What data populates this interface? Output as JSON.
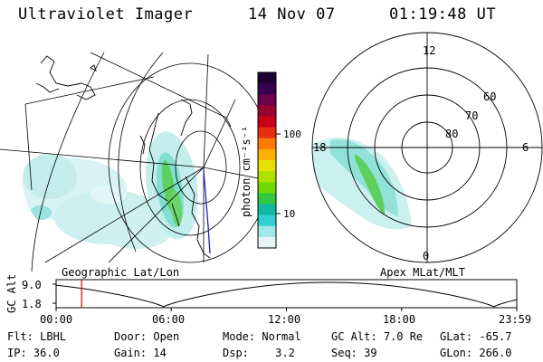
{
  "header": {
    "instrument": "Ultraviolet Imager",
    "date": "14 Nov 07",
    "time": "01:19:48 UT"
  },
  "colorbar": {
    "unit_label": "photon cm⁻²s⁻¹",
    "ticks": [
      "100",
      "10"
    ],
    "colors": [
      "#1a0033",
      "#3a0050",
      "#6a004a",
      "#9a0030",
      "#c80018",
      "#e83010",
      "#ff7a00",
      "#ffb000",
      "#e6e000",
      "#b0e000",
      "#70d800",
      "#30c840",
      "#10b8a0",
      "#30d0d0",
      "#a0e8e8",
      "#e8f4f4"
    ]
  },
  "geo_panel": {
    "label": "Geographic Lat/Lon"
  },
  "polar_panel": {
    "label": "Apex MLat/MLT",
    "mlt_labels": {
      "top": "12",
      "left": "18",
      "right": "6",
      "bottom": "0"
    },
    "lat_labels": [
      "60",
      "70",
      "80"
    ]
  },
  "altitude_plot": {
    "ylabel": "GC Alt",
    "yticks": [
      "9.0",
      "1.8"
    ],
    "xticks": [
      "00:00",
      "06:00",
      "12:00",
      "18:00",
      "23:59"
    ],
    "marker_time_hours": 1.33
  },
  "status": {
    "flt": {
      "label": "Flt:",
      "value": "LBHL"
    },
    "ip": {
      "label": "IP:",
      "value": "36.0"
    },
    "door": {
      "label": "Door:",
      "value": "Open"
    },
    "gain": {
      "label": "Gain:",
      "value": "14"
    },
    "mode": {
      "label": "Mode:",
      "value": "Normal"
    },
    "dsp": {
      "label": "Dsp:",
      "value": "3.2"
    },
    "gcalt": {
      "label": "GC Alt:",
      "value": "7.0 Re"
    },
    "seq": {
      "label": "Seq:",
      "value": "39"
    },
    "glat": {
      "label": "GLat:",
      "value": "-65.7"
    },
    "glon": {
      "label": "GLon:",
      "value": "266.0"
    }
  }
}
